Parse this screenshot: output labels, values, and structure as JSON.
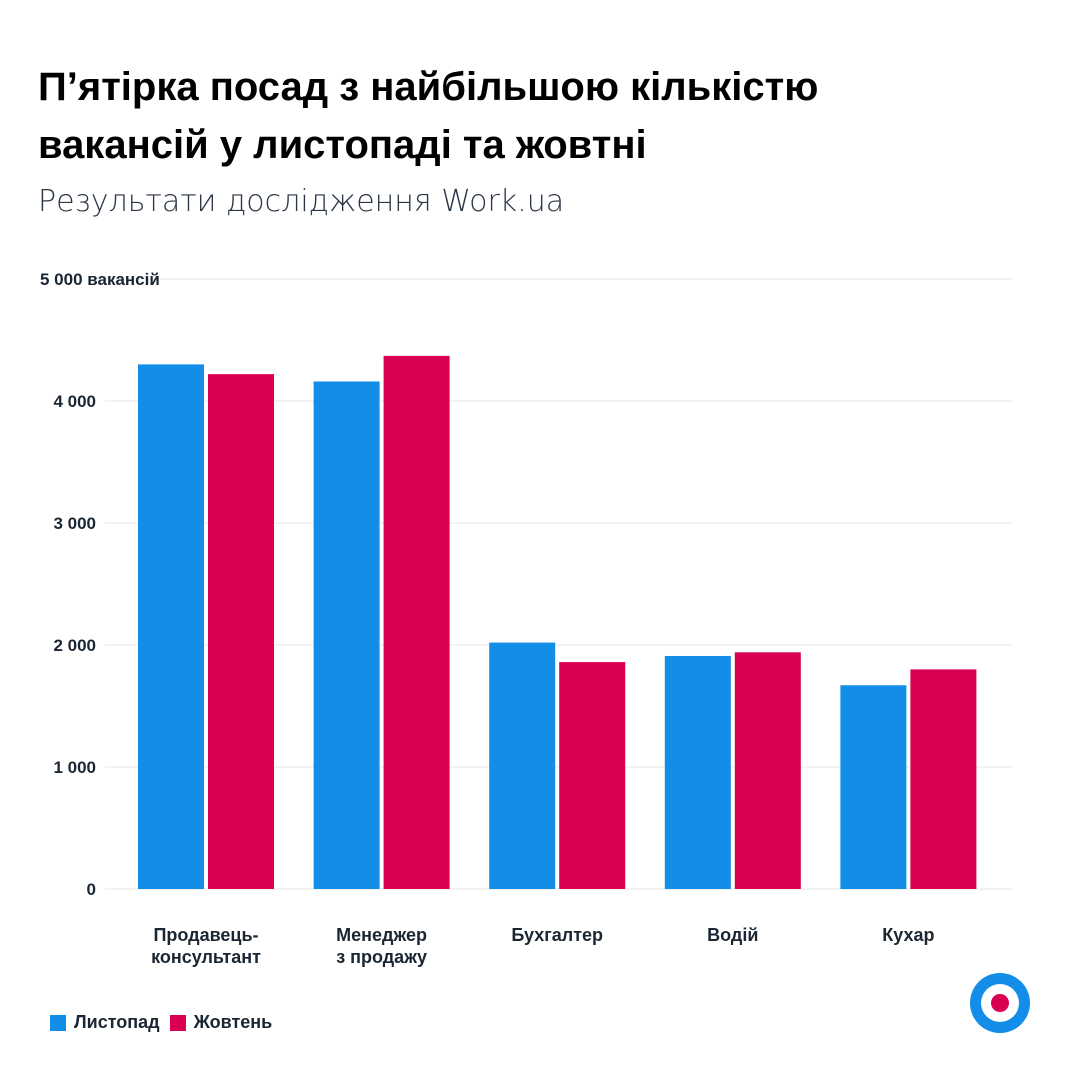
{
  "chart_data": {
    "type": "bar",
    "title": "П’ятірка посад з найбільшою кількістю вакансій у листопаді та жовтні",
    "subtitle": "Результати дослідження Work.ua",
    "categories": [
      [
        "Продавець-",
        "консультант"
      ],
      [
        "Менеджер",
        "з продажу"
      ],
      [
        "Бухгалтер"
      ],
      [
        "Водій"
      ],
      [
        "Кухар"
      ]
    ],
    "series": [
      {
        "name": "Листопад",
        "color": "#128ee9",
        "values": [
          4300,
          4160,
          2020,
          1910,
          1670
        ]
      },
      {
        "name": "Жовтень",
        "color": "#d90052",
        "values": [
          4220,
          4370,
          1860,
          1940,
          1800
        ]
      }
    ],
    "ylim": [
      0,
      5000
    ],
    "yticks": [
      {
        "value": 0,
        "label": "0"
      },
      {
        "value": 1000,
        "label": "1 000"
      },
      {
        "value": 2000,
        "label": "2 000"
      },
      {
        "value": 3000,
        "label": "3 000"
      },
      {
        "value": 4000,
        "label": "4 000"
      },
      {
        "value": 5000,
        "label": "5 000 вакансій"
      }
    ],
    "grid": true,
    "legend_position": "bottom-left"
  },
  "logo": "Work.ua"
}
